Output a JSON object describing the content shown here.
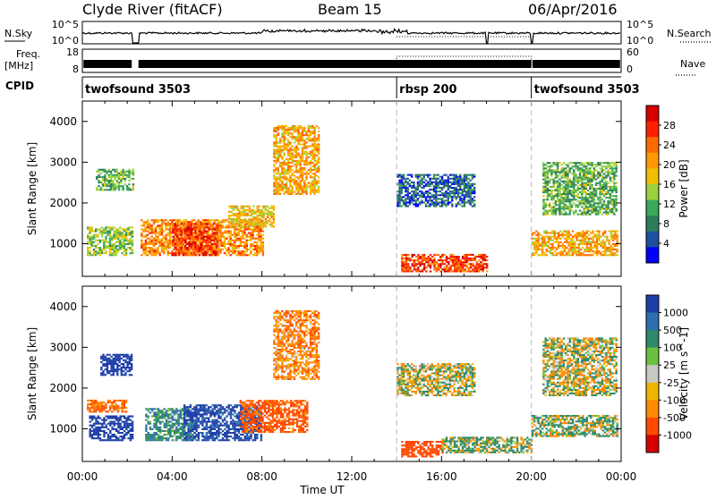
{
  "header": {
    "station": "Clyde River (fitACF)",
    "beam": "Beam 15",
    "date": "06/Apr/2016"
  },
  "left_labels": {
    "nsky": "N.Sky",
    "freq_line1": "Freq.",
    "freq_line2": "[MHz]",
    "cpid": "CPID"
  },
  "right_labels": {
    "nsearch": "N.Search",
    "nave": "Nave"
  },
  "strip_ticks": {
    "noise_left": [
      "10^5",
      "10^0"
    ],
    "noise_right": [
      "10^5",
      "10^0"
    ],
    "freq_left": [
      "18",
      "8"
    ],
    "nave_right": [
      "60",
      "0"
    ]
  },
  "cpid_segments": [
    {
      "label": "twofsound 3503",
      "start_h": 0,
      "end_h": 14
    },
    {
      "label": "rbsp 200",
      "start_h": 14,
      "end_h": 20
    },
    {
      "label": "twofsound 3503",
      "start_h": 20,
      "end_h": 24
    }
  ],
  "x_axis": {
    "label": "Time UT",
    "ticks": [
      "00:00",
      "04:00",
      "08:00",
      "12:00",
      "16:00",
      "20:00",
      "00:00"
    ]
  },
  "power_scale": {
    "label": "Power [dB]",
    "ticks": [
      "28",
      "24",
      "20",
      "16",
      "12",
      "8",
      "4"
    ],
    "colors": [
      "#d50000",
      "#ff2000",
      "#ff6a00",
      "#ff9a00",
      "#f0c000",
      "#9bd23c",
      "#3aa85a",
      "#2e7d5a",
      "#1f4fa0",
      "#0000ff"
    ]
  },
  "velocity_scale": {
    "label": "Velocity [m s^-1]",
    "ticks": [
      "1000",
      "500",
      "100",
      "25",
      "-25",
      "-100",
      "-500",
      "-1000"
    ],
    "colors": [
      "#1f3fa8",
      "#2e6fb0",
      "#2f8a6a",
      "#6cc040",
      "#c8c8c4",
      "#f0b400",
      "#ff8a00",
      "#ff4a00",
      "#d50000"
    ]
  },
  "chart_data": [
    {
      "type": "heatmap",
      "title": "",
      "xlabel": "Time UT",
      "ylabel": "Slant Range [km]",
      "xlim": [
        0,
        24
      ],
      "ylim": [
        200,
        4500
      ],
      "y_ticks": [
        1000,
        2000,
        3000,
        4000
      ],
      "colorbar": {
        "label": "Power [dB]",
        "range": [
          0,
          32
        ]
      },
      "regions": [
        {
          "t0": 0.2,
          "t1": 2.2,
          "r0": 700,
          "r1": 1400,
          "value": 14
        },
        {
          "t0": 0.6,
          "t1": 2.3,
          "r0": 2300,
          "r1": 2800,
          "value": 12
        },
        {
          "t0": 2.6,
          "t1": 8.0,
          "r0": 700,
          "r1": 1600,
          "value": 22
        },
        {
          "t0": 4.0,
          "t1": 6.0,
          "r0": 700,
          "r1": 1500,
          "value": 27
        },
        {
          "t0": 6.5,
          "t1": 8.5,
          "r0": 1400,
          "r1": 1900,
          "value": 18
        },
        {
          "t0": 8.5,
          "t1": 10.5,
          "r0": 2200,
          "r1": 3900,
          "value": 20
        },
        {
          "t0": 14.0,
          "t1": 17.5,
          "r0": 1900,
          "r1": 2700,
          "value": 6
        },
        {
          "t0": 14.2,
          "t1": 18.0,
          "r0": 300,
          "r1": 750,
          "value": 26
        },
        {
          "t0": 20.0,
          "t1": 23.8,
          "r0": 700,
          "r1": 1300,
          "value": 20
        },
        {
          "t0": 20.5,
          "t1": 23.8,
          "r0": 1700,
          "r1": 3000,
          "value": 12
        }
      ]
    },
    {
      "type": "heatmap",
      "title": "",
      "xlabel": "Time UT",
      "ylabel": "Slant Range [km]",
      "xlim": [
        0,
        24
      ],
      "ylim": [
        200,
        4500
      ],
      "y_ticks": [
        1000,
        2000,
        3000,
        4000
      ],
      "colorbar": {
        "label": "Velocity [m s^-1]",
        "range": [
          -1000,
          1000
        ]
      },
      "regions": [
        {
          "t0": 0.3,
          "t1": 2.2,
          "r0": 700,
          "r1": 1300,
          "value": 900
        },
        {
          "t0": 0.8,
          "t1": 2.2,
          "r0": 2300,
          "r1": 2800,
          "value": 900
        },
        {
          "t0": 0.2,
          "t1": 2.0,
          "r0": 1400,
          "r1": 1700,
          "value": -300
        },
        {
          "t0": 2.8,
          "t1": 5.0,
          "r0": 700,
          "r1": 1500,
          "value": 200
        },
        {
          "t0": 4.5,
          "t1": 8.0,
          "r0": 700,
          "r1": 1600,
          "value": 800
        },
        {
          "t0": 7.0,
          "t1": 10.0,
          "r0": 900,
          "r1": 1700,
          "value": -400
        },
        {
          "t0": 8.5,
          "t1": 10.5,
          "r0": 2200,
          "r1": 3900,
          "value": -200
        },
        {
          "t0": 14.0,
          "t1": 17.5,
          "r0": 1800,
          "r1": 2600,
          "value": 0
        },
        {
          "t0": 14.2,
          "t1": 16.0,
          "r0": 300,
          "r1": 700,
          "value": -500
        },
        {
          "t0": 16.0,
          "t1": 20.0,
          "r0": 400,
          "r1": 800,
          "value": 80
        },
        {
          "t0": 20.0,
          "t1": 23.8,
          "r0": 800,
          "r1": 1300,
          "value": 60
        },
        {
          "t0": 20.5,
          "t1": 23.8,
          "r0": 1800,
          "r1": 3200,
          "value": 0
        }
      ]
    }
  ]
}
